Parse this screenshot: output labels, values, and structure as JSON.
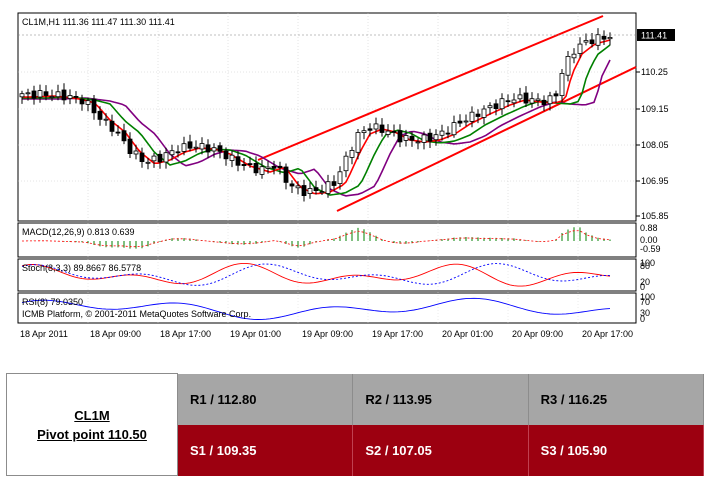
{
  "chart": {
    "header": "CL1M,H1  111.36 111.47 111.30 111.41",
    "current_price": "111.41",
    "price_ticks": [
      "110.25",
      "109.15",
      "108.05",
      "106.95",
      "105.85"
    ],
    "macd_label": "MACD(12,26,9) 0.813 0.639",
    "macd_ticks": [
      "0.88",
      "0.00",
      "-0.59"
    ],
    "stoch_label": "Stoch(8,3,3) 89.8667 86.5778",
    "stoch_ticks": [
      "100",
      "80",
      "20",
      "0"
    ],
    "rsi_label": "RSI(8) 79.0350",
    "rsi_ticks": [
      "100",
      "70",
      "30",
      "0"
    ],
    "copyright": "ICMB Platform, © 2001-2011 MetaQuotes Software Corp.",
    "time_labels": [
      "18 Apr 2011",
      "18 Apr 09:00",
      "18 Apr 17:00",
      "19 Apr 01:00",
      "19 Apr 09:00",
      "19 Apr 17:00",
      "20 Apr 01:00",
      "20 Apr 09:00",
      "20 Apr 17:00"
    ],
    "colors": {
      "bull": "#ffffff",
      "bear": "#000000",
      "channel": "#ff0000",
      "ma_fast": "#ff0000",
      "ma_mid": "#008000",
      "ma_slow": "#800080",
      "macd_hist": "#008000",
      "signal": "#ff0000",
      "rsi": "#0000ff"
    }
  },
  "pivot": {
    "symbol": "CL1M",
    "pivot_point": "Pivot point 110.50",
    "resistance": [
      "R1 / 112.80",
      "R2  / 113.95",
      "R3 / 116.25"
    ],
    "support": [
      "S1 / 109.35",
      "S2 /  107.05",
      "S3 /  105.90"
    ]
  }
}
